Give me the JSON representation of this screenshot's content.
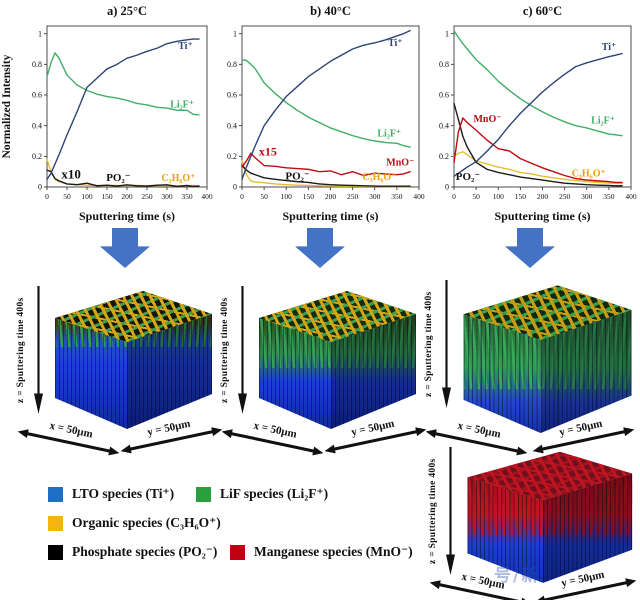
{
  "figure": {
    "background": "#ffffff",
    "arrow_color": "#4472c4",
    "watermark": "号/新"
  },
  "chart_data": [
    {
      "type": "line",
      "title": "a) 25°C",
      "xlabel": "Sputtering time (s)",
      "ylabel": "Normalized Intensity",
      "xlim": [
        0,
        400
      ],
      "ylim": [
        0,
        1.05
      ],
      "xticks": [
        0,
        50,
        100,
        150,
        200,
        250,
        300,
        350,
        400
      ],
      "yticks": [
        0,
        0.2,
        0.4,
        0.6,
        0.8,
        1
      ],
      "ytick_labels": [
        "0",
        "0.2",
        "0.4",
        "0.6",
        "0.8",
        "1"
      ],
      "grid": false,
      "x": [
        0,
        10,
        20,
        30,
        50,
        75,
        100,
        125,
        150,
        175,
        200,
        225,
        250,
        275,
        300,
        325,
        350,
        365,
        380
      ],
      "series": [
        {
          "name": "C₃H₆O⁺",
          "color": "#e6bc33",
          "y": [
            0.18,
            0.1,
            0.05,
            0.035,
            0.02,
            0.015,
            0.012,
            0.01,
            0.009,
            0.01,
            0.008,
            0.01,
            0.008,
            0.008,
            0.01,
            0.008,
            0.008,
            0.01,
            0.008
          ]
        },
        {
          "name": "PO₂⁻ (x10)",
          "color": "#1b1b1b",
          "y": [
            0.11,
            0.1,
            0.055,
            0.04,
            0.02,
            0.015,
            0.025,
            0.008,
            0.012,
            0.006,
            0.014,
            0.008,
            0.006,
            0.012,
            0.014,
            0.004,
            0.01,
            0.004,
            0.006
          ]
        },
        {
          "name": "Li₂F⁺",
          "color": "#41ad68",
          "y": [
            0.72,
            0.81,
            0.875,
            0.84,
            0.73,
            0.665,
            0.63,
            0.605,
            0.59,
            0.58,
            0.565,
            0.545,
            0.535,
            0.52,
            0.515,
            0.5,
            0.5,
            0.475,
            0.47
          ]
        },
        {
          "name": "Ti⁺",
          "color": "#2e4377",
          "y": [
            0.05,
            0.09,
            0.15,
            0.21,
            0.34,
            0.49,
            0.65,
            0.71,
            0.77,
            0.8,
            0.84,
            0.86,
            0.885,
            0.905,
            0.935,
            0.95,
            0.96,
            0.965,
            0.965
          ]
        }
      ],
      "annotations": [
        {
          "text": "Ti⁺",
          "x": 328,
          "y": 0.9,
          "color": "#2e4377",
          "size": 10
        },
        {
          "text": "Li₂F⁺",
          "x": 308,
          "y": 0.52,
          "color": "#41ad68",
          "size": 10
        },
        {
          "text": "x10",
          "x": 36,
          "y": 0.055,
          "color": "#111111",
          "size": 13
        },
        {
          "text": "PO₂⁻",
          "x": 148,
          "y": 0.04,
          "color": "#111111",
          "size": 11
        },
        {
          "text": "C₃H₆O⁺",
          "x": 286,
          "y": 0.04,
          "color": "#f0a007",
          "size": 10
        }
      ]
    },
    {
      "type": "line",
      "title": "b) 40°C",
      "xlabel": "Sputtering time (s)",
      "ylabel": "",
      "xlim": [
        0,
        400
      ],
      "ylim": [
        0,
        1.05
      ],
      "xticks": [
        0,
        50,
        100,
        150,
        200,
        250,
        300,
        350,
        400
      ],
      "yticks": [
        0,
        0.2,
        0.4,
        0.6,
        0.8,
        1
      ],
      "ytick_labels": [
        "0",
        "0.2",
        "0.4",
        "0.6",
        "0.8",
        "1"
      ],
      "grid": false,
      "x": [
        0,
        10,
        20,
        30,
        50,
        75,
        100,
        125,
        150,
        175,
        200,
        225,
        250,
        275,
        300,
        325,
        350,
        365,
        380
      ],
      "series": [
        {
          "name": "C₃H₆O⁺",
          "color": "#e6bc33",
          "y": [
            0.17,
            0.08,
            0.04,
            0.032,
            0.028,
            0.02,
            0.015,
            0.012,
            0.01,
            0.008,
            0.006,
            0.005,
            0.005,
            0.004,
            0.004,
            0.003,
            0.003,
            0.003,
            0.003
          ]
        },
        {
          "name": "PO₂⁻",
          "color": "#1b1b1b",
          "y": [
            0.14,
            0.11,
            0.09,
            0.08,
            0.06,
            0.05,
            0.042,
            0.035,
            0.03,
            0.02,
            0.015,
            0.012,
            0.01,
            0.008,
            0.006,
            0.005,
            0.005,
            0.005,
            0.005
          ]
        },
        {
          "name": "MnO⁻ (x15)",
          "color": "#bf0a14",
          "y": [
            0.13,
            0.17,
            0.22,
            0.19,
            0.14,
            0.135,
            0.125,
            0.12,
            0.115,
            0.1,
            0.105,
            0.08,
            0.1,
            0.075,
            0.09,
            0.085,
            0.08,
            0.085,
            0.1
          ]
        },
        {
          "name": "Li₂F⁺",
          "color": "#41ad68",
          "y": [
            0.83,
            0.825,
            0.8,
            0.77,
            0.68,
            0.61,
            0.55,
            0.5,
            0.455,
            0.42,
            0.385,
            0.36,
            0.335,
            0.315,
            0.3,
            0.29,
            0.285,
            0.27,
            0.26
          ]
        },
        {
          "name": "Ti⁺",
          "color": "#2e4377",
          "y": [
            0.05,
            0.13,
            0.2,
            0.27,
            0.4,
            0.5,
            0.59,
            0.655,
            0.72,
            0.77,
            0.82,
            0.86,
            0.9,
            0.925,
            0.94,
            0.96,
            0.985,
            1.0,
            1.02
          ]
        }
      ],
      "annotations": [
        {
          "text": "Ti⁺",
          "x": 330,
          "y": 0.92,
          "color": "#2e4377",
          "size": 10
        },
        {
          "text": "x15",
          "x": 38,
          "y": 0.205,
          "color": "#bf0a14",
          "size": 12
        },
        {
          "text": "Li₂F⁺",
          "x": 306,
          "y": 0.33,
          "color": "#41ad68",
          "size": 10
        },
        {
          "text": "MnO⁻",
          "x": 326,
          "y": 0.14,
          "color": "#bf0a14",
          "size": 10
        },
        {
          "text": "PO₂⁻",
          "x": 98,
          "y": 0.05,
          "color": "#111111",
          "size": 11
        },
        {
          "text": "C₃H₆O⁺",
          "x": 272,
          "y": 0.045,
          "color": "#f0a007",
          "size": 10
        }
      ]
    },
    {
      "type": "line",
      "title": "c) 60°C",
      "xlabel": "Sputtering time (s)",
      "ylabel": "",
      "xlim": [
        0,
        400
      ],
      "ylim": [
        0,
        1.05
      ],
      "xticks": [
        0,
        50,
        100,
        150,
        200,
        250,
        300,
        350,
        400
      ],
      "yticks": [
        0,
        0.2,
        0.4,
        0.6,
        0.8,
        1
      ],
      "ytick_labels": [
        "0",
        "0.2",
        "0.4",
        "0.6",
        "0.8",
        "1"
      ],
      "grid": false,
      "x": [
        0,
        10,
        20,
        30,
        50,
        75,
        100,
        125,
        150,
        175,
        200,
        225,
        250,
        275,
        300,
        325,
        350,
        365,
        380
      ],
      "series": [
        {
          "name": "C₃H₆O⁺",
          "color": "#e6bc33",
          "y": [
            0.2,
            0.22,
            0.23,
            0.21,
            0.17,
            0.15,
            0.13,
            0.115,
            0.095,
            0.085,
            0.07,
            0.06,
            0.05,
            0.042,
            0.035,
            0.03,
            0.026,
            0.024,
            0.022
          ]
        },
        {
          "name": "PO₂⁻",
          "color": "#1b1b1b",
          "y": [
            0.545,
            0.44,
            0.33,
            0.26,
            0.16,
            0.115,
            0.095,
            0.08,
            0.065,
            0.055,
            0.045,
            0.035,
            0.025,
            0.02,
            0.015,
            0.012,
            0.01,
            0.008,
            0.008
          ]
        },
        {
          "name": "MnO⁻",
          "color": "#bf0a14",
          "y": [
            0.16,
            0.36,
            0.45,
            0.42,
            0.37,
            0.305,
            0.25,
            0.235,
            0.185,
            0.155,
            0.125,
            0.1,
            0.075,
            0.055,
            0.045,
            0.04,
            0.035,
            0.03,
            0.03
          ]
        },
        {
          "name": "Li₂F⁺",
          "color": "#41ad68",
          "y": [
            1.02,
            0.975,
            0.935,
            0.9,
            0.83,
            0.765,
            0.69,
            0.63,
            0.575,
            0.53,
            0.49,
            0.455,
            0.425,
            0.4,
            0.385,
            0.365,
            0.345,
            0.34,
            0.335
          ]
        },
        {
          "name": "Ti⁺",
          "color": "#2e4377",
          "y": [
            0.07,
            0.09,
            0.11,
            0.13,
            0.165,
            0.235,
            0.31,
            0.4,
            0.48,
            0.55,
            0.62,
            0.68,
            0.735,
            0.785,
            0.81,
            0.83,
            0.85,
            0.86,
            0.87
          ]
        }
      ],
      "annotations": [
        {
          "text": "Ti⁺",
          "x": 334,
          "y": 0.895,
          "color": "#2e4377",
          "size": 10
        },
        {
          "text": "MnO⁻",
          "x": 44,
          "y": 0.425,
          "color": "#bf0a14",
          "size": 10
        },
        {
          "text": "Li₂F⁺",
          "x": 310,
          "y": 0.415,
          "color": "#41ad68",
          "size": 10
        },
        {
          "text": "C₃H₆O⁺",
          "x": 266,
          "y": 0.07,
          "color": "#f0a007",
          "size": 10
        },
        {
          "text": "PO₂⁻",
          "x": 4,
          "y": 0.045,
          "color": "#111111",
          "size": 11
        }
      ]
    }
  ],
  "cubes": [
    {
      "z_label": "z = Sputtering time 400s",
      "x_label": "x = 50µm",
      "y_label": "y = 50µm",
      "palette": {
        "ta": "#d7a414",
        "tb": "#15160a",
        "tc": "#3d9e4f",
        "blob": "#2f9e4c",
        "bd": "42%",
        "s1": "#41430f",
        "s2": "#2254c2",
        "s3": "#1c3ed2",
        "s4": "#0e2aa0",
        "p1": "38%",
        "p2": "56%"
      }
    },
    {
      "z_label": "z = Sputtering time 400s",
      "x_label": "x = 50µm",
      "y_label": "y = 50µm",
      "palette": {
        "ta": "#d7a414",
        "tb": "#142d12",
        "tc": "#37a052",
        "blob": "#34a055",
        "bd": "56%",
        "s1": "#2c581e",
        "s2": "#2d8a4a",
        "s3": "#1c3ed2",
        "s4": "#0e2aa0",
        "p1": "46%",
        "p2": "66%"
      }
    },
    {
      "z_label": "z = Sputtering time 400s",
      "x_label": "x = 50µm",
      "y_label": "y = 50µm",
      "palette": {
        "ta": "#c79b12",
        "tb": "#0f2a10",
        "tc": "#2fa04e",
        "blob": "#37a85a",
        "bd": "70%",
        "s1": "#2e6a30",
        "s2": "#2f9e50",
        "s3": "#2446cc",
        "s4": "#102ea6",
        "p1": "55%",
        "p2": "78%"
      }
    },
    {
      "z_label": "z = Sputtering time 400s",
      "x_label": "x = 50µm",
      "y_label": "y = 50µm",
      "palette": {
        "ta": "#c11420",
        "tb": "#70101c",
        "tc": "#9e1420",
        "blob": "#c11420",
        "bd": "64%",
        "s1": "#9e1018",
        "s2": "#c11420",
        "s3": "#1c3ed2",
        "s4": "#1233b4",
        "p1": "48%",
        "p2": "70%"
      }
    }
  ],
  "legend": {
    "items": [
      {
        "label": "LTO species (Ti⁺)",
        "color": "#1f6fc5"
      },
      {
        "label": "LiF species (Li₂F⁺)",
        "color": "#2aa03c"
      },
      {
        "label": "Organic species (C₃H₆O⁺)",
        "color": "#f6b40e"
      },
      {
        "label": "Phosphate species (PO₂⁻)",
        "color": "#000000"
      },
      {
        "label": "Manganese species (MnO⁻)",
        "color": "#c00013"
      }
    ]
  }
}
